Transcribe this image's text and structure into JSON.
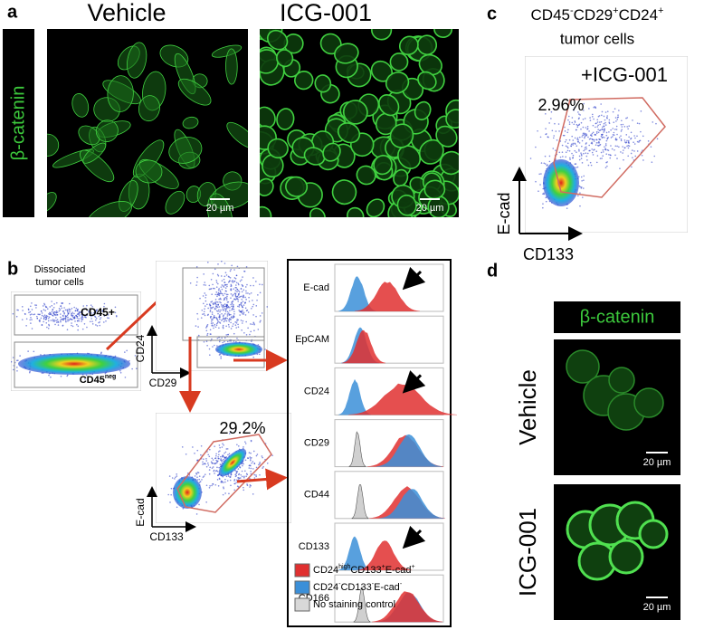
{
  "panel_a": {
    "label": "a",
    "columns": [
      "Vehicle",
      "ICG-001"
    ],
    "row_label": "β-catenin",
    "scale_bars": [
      "20 µm",
      "20 µm"
    ]
  },
  "panel_b": {
    "label": "b",
    "source": [
      "Dissociated",
      "tumor cells"
    ],
    "gate_top": "CD45+",
    "gate_bottom": [
      "CD45",
      "neg"
    ],
    "plot2_axes": {
      "y": "CD24",
      "x": "CD29"
    },
    "plot3": {
      "percent": "29.2%",
      "y": "E-cad",
      "x": "CD133"
    },
    "histogram_rows": [
      "E-cad",
      "EpCAM",
      "CD24",
      "CD29",
      "CD44",
      "CD133",
      "CD166"
    ],
    "legend": [
      [
        "CD24",
        "high",
        "CD133",
        "+",
        "E-cad",
        "+"
      ],
      [
        "CD24",
        "-",
        "CD133",
        "-",
        "E-cad",
        "-"
      ],
      [
        "No staining control"
      ]
    ]
  },
  "panel_c": {
    "label": "c",
    "title_parts": [
      "CD45",
      "-",
      "CD29",
      "+",
      "CD24",
      "+"
    ],
    "subtitle": "tumor cells",
    "condition": "+ICG-001",
    "percent": "2.96%",
    "y": "E-cad",
    "x": "CD133"
  },
  "panel_d": {
    "label": "d",
    "stain": "β-catenin",
    "rows": [
      "Vehicle",
      "ICG-001"
    ],
    "scale_bars": [
      "20 µm",
      "20 µm"
    ]
  }
}
